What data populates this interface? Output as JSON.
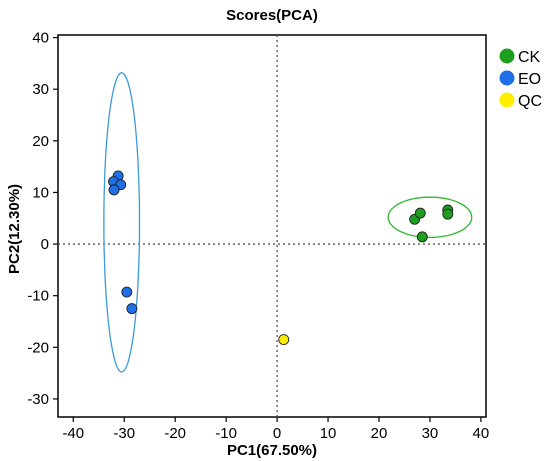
{
  "chart_data": {
    "type": "scatter",
    "title": "Scores(PCA)",
    "xlabel": "PC1(67.50%)",
    "ylabel": "PC2(12.30%)",
    "xlim": [
      -43,
      41
    ],
    "ylim": [
      -33.5,
      40.5
    ],
    "xticks": [
      -40,
      -30,
      -20,
      -10,
      0,
      10,
      20,
      30,
      40
    ],
    "yticks": [
      -30,
      -20,
      -10,
      0,
      10,
      20,
      30,
      40
    ],
    "tick_labels_x": [
      "-40",
      "-30",
      "-20",
      "-10",
      "0",
      "10",
      "20",
      "30",
      "40"
    ],
    "tick_labels_y": [
      "-30",
      "-20",
      "-10",
      "0",
      "10",
      "20",
      "30",
      "40"
    ],
    "grid": false,
    "reference_lines": {
      "x": 0,
      "y": 0,
      "style": "dotted"
    },
    "legend_position": "right",
    "series": [
      {
        "name": "CK",
        "color": "#1e9e1e",
        "points": [
          [
            27,
            4.8
          ],
          [
            28.1,
            6
          ],
          [
            28.5,
            1.4
          ],
          [
            33.5,
            6.6
          ],
          [
            33.5,
            5.8
          ]
        ],
        "ellipse": {
          "center": [
            30,
            5.2
          ],
          "half_axes": [
            8.2,
            3.9
          ],
          "color": "#2eb82e"
        }
      },
      {
        "name": "EO",
        "color": "#1f6fe8",
        "points": [
          [
            -31.2,
            13.2
          ],
          [
            -32.1,
            12.1
          ],
          [
            -30.7,
            11.5
          ],
          [
            -32,
            10.5
          ],
          [
            -29.5,
            -9.3
          ],
          [
            -28.5,
            -12.5
          ]
        ],
        "ellipse": {
          "center": [
            -30.5,
            4.2
          ],
          "half_axes": [
            3.5,
            29
          ],
          "color": "#3b9ad9"
        }
      },
      {
        "name": "QC",
        "color": "#ffee00",
        "points": [
          [
            1.3,
            -18.5
          ]
        ]
      }
    ]
  }
}
